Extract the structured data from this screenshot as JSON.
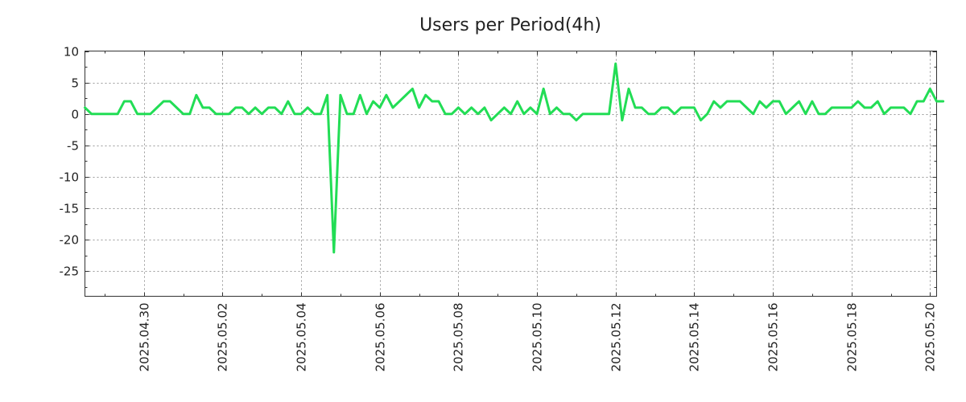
{
  "chart_data": {
    "type": "line",
    "title": "Users per Period(4h)",
    "xlabel": "",
    "ylabel": "",
    "x_ticks": [
      "2025.04.30",
      "2025.05.02",
      "2025.05.04",
      "2025.05.06",
      "2025.05.08",
      "2025.05.10",
      "2025.05.12",
      "2025.05.14",
      "2025.05.16",
      "2025.05.18",
      "2025.05.20"
    ],
    "y_ticks": [
      10,
      5,
      0,
      -5,
      -10,
      -15,
      -20,
      -25
    ],
    "ylim": [
      -29,
      10
    ],
    "xlim": [
      "2025.04.28 12:00",
      "2025.05.20 04:00"
    ],
    "grid": true,
    "legend": "none",
    "color": "#22dd55",
    "series": [
      {
        "interval_hours": 4,
        "start": "2025.04.28 12:00",
        "values": [
          1,
          0,
          0,
          0,
          0,
          0,
          2,
          2,
          0,
          0,
          0,
          1,
          2,
          2,
          1,
          0,
          0,
          3,
          1,
          1,
          0,
          0,
          0,
          1,
          1,
          0,
          1,
          0,
          1,
          1,
          0,
          2,
          0,
          0,
          1,
          0,
          0,
          3,
          -22,
          3,
          0,
          0,
          3,
          0,
          2,
          1,
          3,
          1,
          2,
          3,
          4,
          1,
          3,
          2,
          2,
          0,
          0,
          1,
          0,
          1,
          0,
          1,
          -1,
          0,
          1,
          0,
          2,
          0,
          1,
          0,
          4,
          0,
          1,
          0,
          0,
          -1,
          0,
          0,
          0,
          0,
          0,
          8,
          -1,
          4,
          1,
          1,
          0,
          0,
          1,
          1,
          0,
          1,
          1,
          1,
          -1,
          0,
          2,
          1,
          2,
          2,
          2,
          1,
          0,
          2,
          1,
          2,
          2,
          0,
          1,
          2,
          0,
          2,
          0,
          0,
          1,
          1,
          1,
          1,
          2,
          1,
          1,
          2,
          0,
          1,
          1,
          1,
          0,
          2,
          2,
          4,
          2,
          2
        ]
      }
    ]
  }
}
